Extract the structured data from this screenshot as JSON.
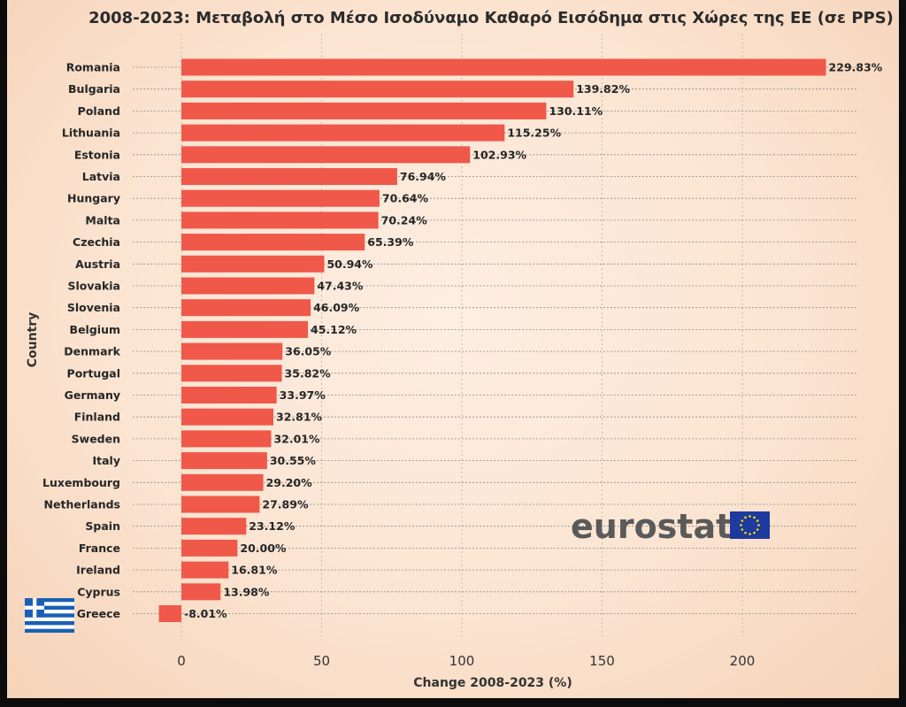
{
  "chart_data": {
    "type": "bar",
    "orientation": "horizontal",
    "title": "2008-2023: Μεταβολή στο Μέσο Ισοδύναμο Καθαρό Εισόδημα στις Χώρες της ΕΕ (σε PPS)",
    "xlabel": "Change 2008-2023 (%)",
    "ylabel": "Country",
    "xlim": [
      -8.01,
      229.83
    ],
    "xticks": [
      0,
      50,
      100,
      150,
      200
    ],
    "grid": true,
    "bar_color": "#f0584a",
    "categories": [
      "Romania",
      "Bulgaria",
      "Poland",
      "Lithuania",
      "Estonia",
      "Latvia",
      "Hungary",
      "Malta",
      "Czechia",
      "Austria",
      "Slovakia",
      "Slovenia",
      "Belgium",
      "Denmark",
      "Portugal",
      "Germany",
      "Finland",
      "Sweden",
      "Italy",
      "Luxembourg",
      "Netherlands",
      "Spain",
      "France",
      "Ireland",
      "Cyprus",
      "Greece"
    ],
    "values": [
      229.83,
      139.82,
      130.11,
      115.25,
      102.93,
      76.94,
      70.64,
      70.24,
      65.39,
      50.94,
      47.43,
      46.09,
      45.12,
      36.05,
      35.82,
      33.97,
      32.81,
      32.01,
      30.55,
      29.2,
      27.89,
      23.12,
      20.0,
      16.81,
      13.98,
      -8.01
    ],
    "labels": [
      "229.83%",
      "139.82%",
      "130.11%",
      "115.25%",
      "102.93%",
      "76.94%",
      "70.64%",
      "70.24%",
      "65.39%",
      "50.94%",
      "47.43%",
      "46.09%",
      "45.12%",
      "36.05%",
      "35.82%",
      "33.97%",
      "32.81%",
      "32.01%",
      "30.55%",
      "29.20%",
      "27.89%",
      "23.12%",
      "20.00%",
      "16.81%",
      "13.98%",
      "-8.01%"
    ]
  },
  "logo": {
    "text": "eurostat",
    "name": "eu-flag-icon"
  },
  "flag": {
    "name": "greek-flag-icon"
  }
}
